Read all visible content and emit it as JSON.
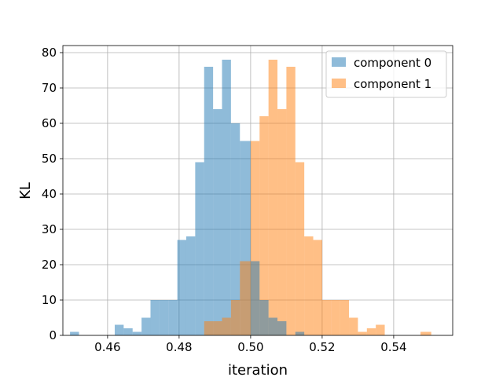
{
  "chart_data": {
    "type": "bar",
    "xlabel": "iteration",
    "ylabel": "KL",
    "xlim": [
      0.4475,
      0.5565
    ],
    "ylim": [
      0,
      82
    ],
    "grid": true,
    "legend_position": "top-right",
    "x_ticks": [
      "0.46",
      "0.48",
      "0.50",
      "0.52",
      "0.54"
    ],
    "x_tick_values": [
      0.46,
      0.48,
      0.5,
      0.52,
      0.54
    ],
    "y_ticks": [
      "0",
      "10",
      "20",
      "30",
      "40",
      "50",
      "60",
      "70",
      "80"
    ],
    "y_tick_values": [
      0,
      10,
      20,
      30,
      40,
      50,
      60,
      70,
      80
    ],
    "series": [
      {
        "name": "component 0",
        "color": "#1f77b4",
        "bins": [
          [
            0.4495,
            0.452,
            1
          ],
          [
            0.452,
            0.4545,
            0
          ],
          [
            0.4545,
            0.457,
            0
          ],
          [
            0.457,
            0.4595,
            0
          ],
          [
            0.4595,
            0.462,
            0
          ],
          [
            0.462,
            0.4645,
            3
          ],
          [
            0.4645,
            0.467,
            2
          ],
          [
            0.467,
            0.4695,
            1
          ],
          [
            0.4695,
            0.472,
            5
          ],
          [
            0.472,
            0.4745,
            10
          ],
          [
            0.4745,
            0.477,
            10
          ],
          [
            0.477,
            0.4795,
            10
          ],
          [
            0.4795,
            0.482,
            27
          ],
          [
            0.482,
            0.4845,
            28
          ],
          [
            0.4845,
            0.487,
            49
          ],
          [
            0.487,
            0.4895,
            76
          ],
          [
            0.4895,
            0.492,
            64
          ],
          [
            0.492,
            0.4945,
            78
          ],
          [
            0.4945,
            0.497,
            60
          ],
          [
            0.497,
            0.5,
            55
          ]
        ]
      },
      {
        "name": "component 1",
        "color": "#ff7f0e",
        "bins": [
          [
            0.5,
            0.5025,
            55
          ],
          [
            0.5025,
            0.505,
            62
          ],
          [
            0.505,
            0.5075,
            78
          ],
          [
            0.5075,
            0.51,
            64
          ],
          [
            0.51,
            0.5125,
            76
          ],
          [
            0.5125,
            0.515,
            49
          ],
          [
            0.515,
            0.5175,
            28
          ],
          [
            0.5175,
            0.52,
            27
          ],
          [
            0.52,
            0.5225,
            10
          ],
          [
            0.5225,
            0.525,
            10
          ],
          [
            0.525,
            0.5275,
            10
          ],
          [
            0.5275,
            0.53,
            5
          ],
          [
            0.53,
            0.5325,
            1
          ],
          [
            0.5325,
            0.535,
            2
          ],
          [
            0.535,
            0.5375,
            3
          ],
          [
            0.5375,
            0.54,
            0
          ],
          [
            0.54,
            0.5425,
            0
          ],
          [
            0.5425,
            0.545,
            0
          ],
          [
            0.545,
            0.5475,
            0
          ],
          [
            0.5475,
            0.5505,
            1
          ]
        ]
      },
      {
        "name": "",
        "color": "#ff7f0e",
        "bins": [
          [
            0.4845,
            0.4875,
            1
          ],
          [
            0.4875,
            0.4905,
            0
          ],
          [
            0.4905,
            0.4935,
            1
          ],
          [
            0.4905,
            0.4935,
            0
          ],
          [
            0.4935,
            0.4965,
            0
          ],
          [
            0.4965,
            0.4995,
            0
          ]
        ]
      },
      {
        "name": "",
        "color": "#1f77b4",
        "bins": []
      }
    ],
    "overlap_bins": [
      [
        0.487,
        0.4895,
        4
      ],
      [
        0.4895,
        0.492,
        4
      ],
      [
        0.492,
        0.4945,
        5
      ],
      [
        0.4945,
        0.497,
        10
      ],
      [
        0.497,
        0.5,
        21
      ],
      [
        0.5,
        0.5025,
        21
      ],
      [
        0.5025,
        0.505,
        10
      ],
      [
        0.505,
        0.5075,
        5
      ],
      [
        0.5075,
        0.51,
        4
      ],
      [
        0.51,
        0.5125,
        0
      ],
      [
        0.5125,
        0.515,
        1
      ]
    ]
  }
}
